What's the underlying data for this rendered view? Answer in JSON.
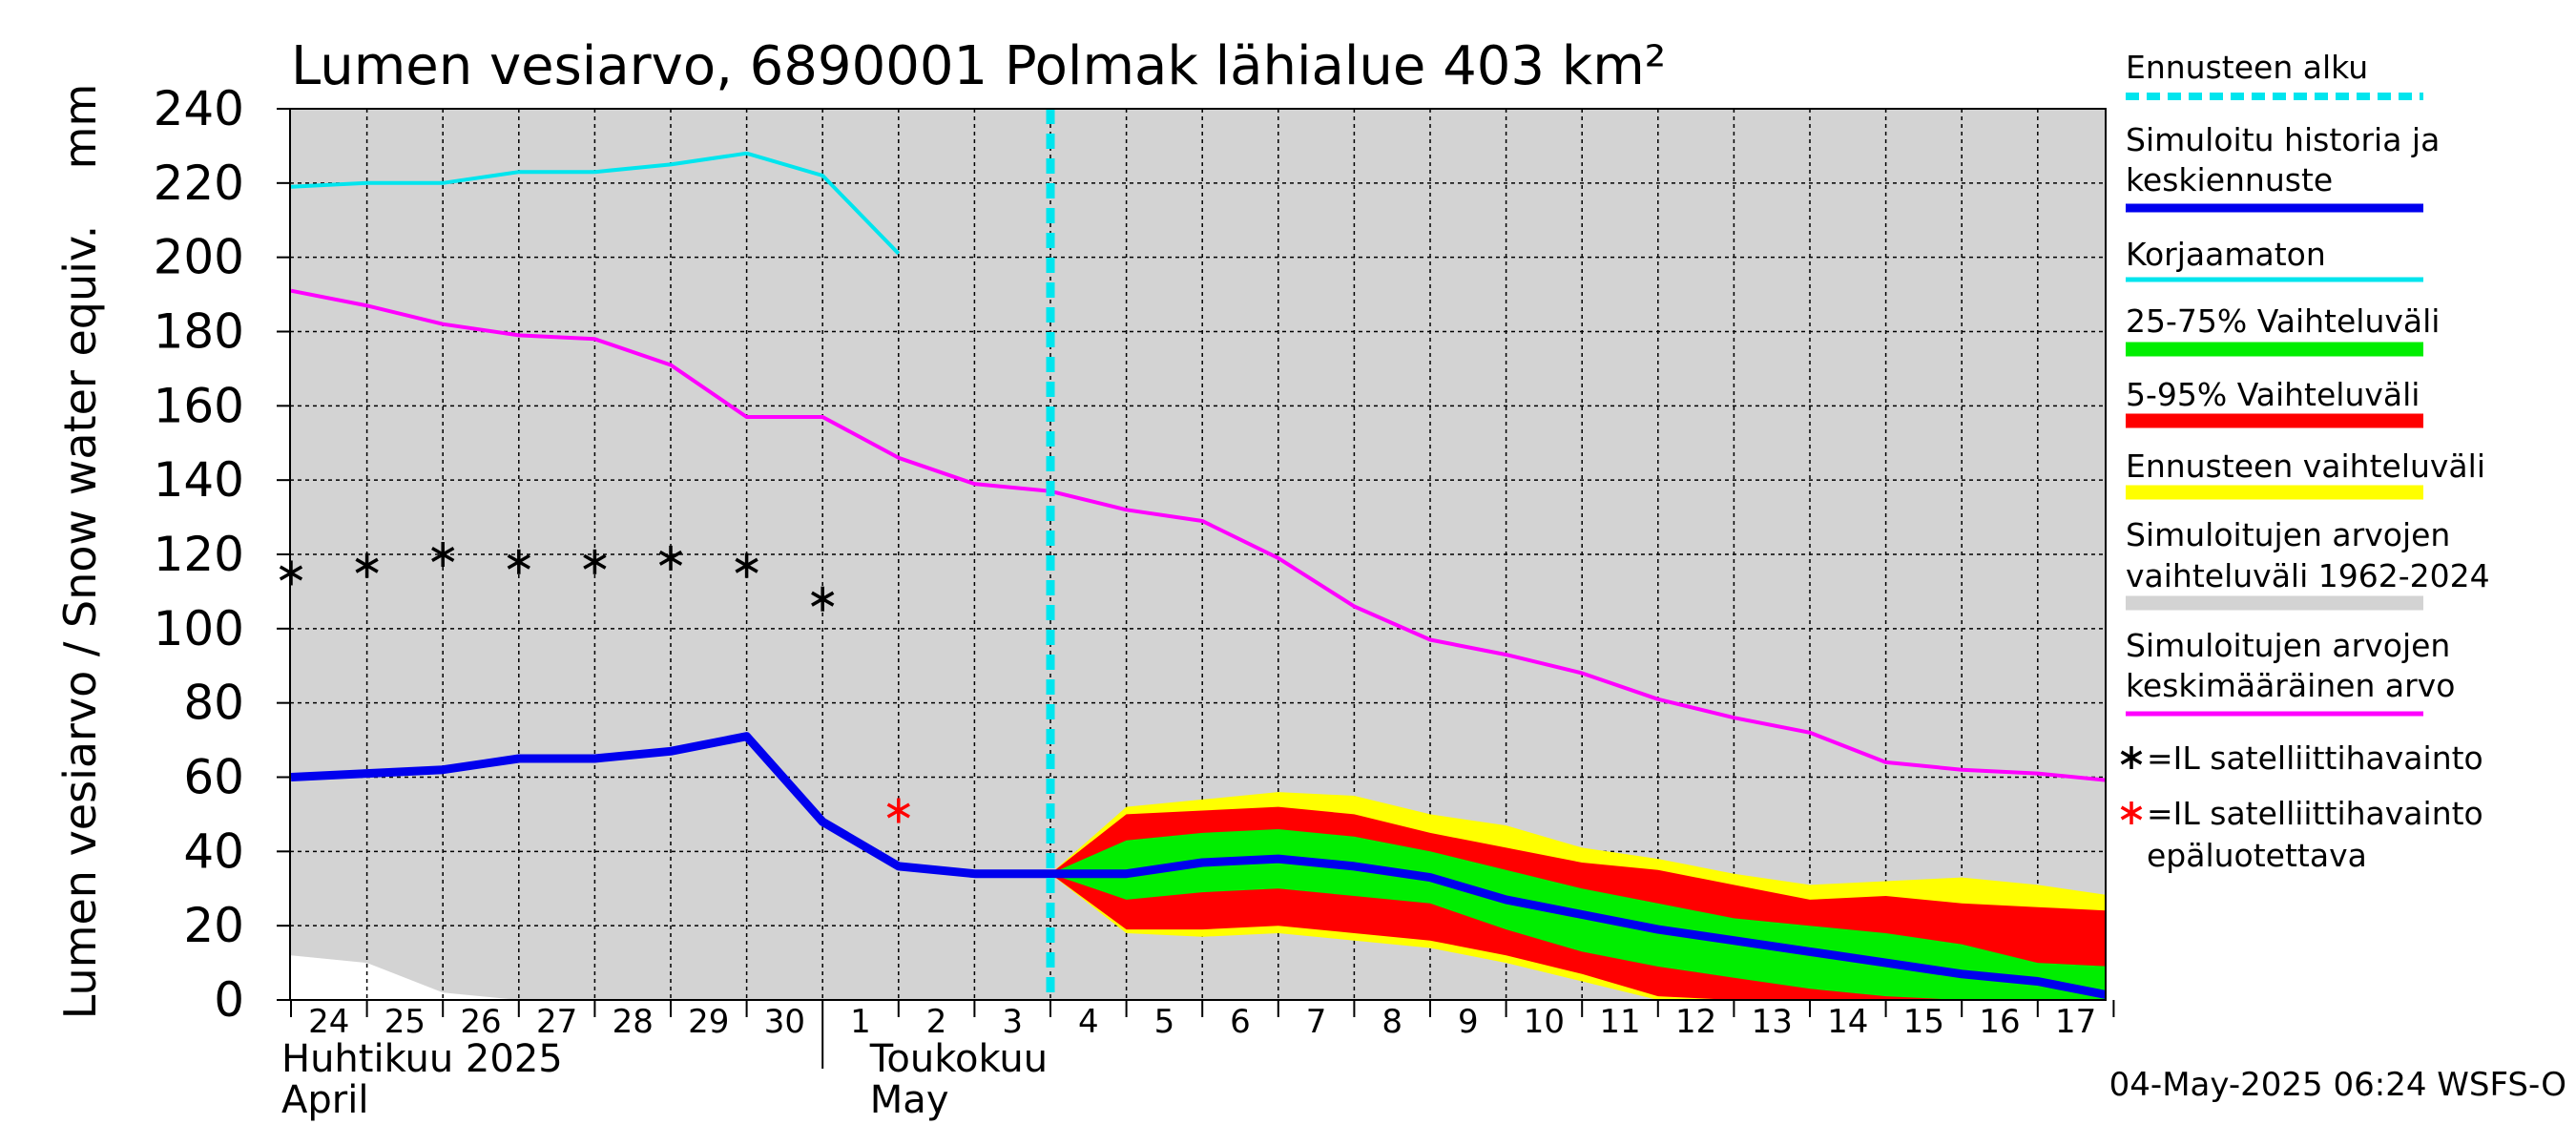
{
  "chart_data": {
    "type": "line",
    "title": "Lumen vesiarvo, 6890001 Polmak lähialue 403 km²",
    "ylabel": "Lumen vesiarvo / Snow water equiv.    mm",
    "ylim": [
      0,
      240
    ],
    "yticks": [
      0,
      20,
      40,
      60,
      80,
      100,
      120,
      140,
      160,
      180,
      200,
      220,
      240
    ],
    "grid": true,
    "x_day_labels": [
      "24",
      "25",
      "26",
      "27",
      "28",
      "29",
      "30",
      "1",
      "2",
      "3",
      "4",
      "5",
      "6",
      "7",
      "8",
      "9",
      "10",
      "11",
      "12",
      "13",
      "14",
      "15",
      "16",
      "17"
    ],
    "x_dates": [
      "2025-04-24",
      "2025-04-25",
      "2025-04-26",
      "2025-04-27",
      "2025-04-28",
      "2025-04-29",
      "2025-04-30",
      "2025-05-01",
      "2025-05-02",
      "2025-05-03",
      "2025-05-04",
      "2025-05-05",
      "2025-05-06",
      "2025-05-07",
      "2025-05-08",
      "2025-05-09",
      "2025-05-10",
      "2025-05-11",
      "2025-05-12",
      "2025-05-13",
      "2025-05-14",
      "2025-05-15",
      "2025-05-16",
      "2025-05-17",
      "2025-05-18"
    ],
    "month_labels": [
      {
        "fi": "Huhtikuu  2025",
        "en": "April"
      },
      {
        "fi": "Toukokuu",
        "en": "May"
      }
    ],
    "forecast_start": "2025-05-04",
    "historical_range_1962_2024": {
      "upper": [
        240,
        240,
        240,
        240,
        240,
        240,
        240,
        240,
        240,
        240,
        240,
        240,
        240,
        240,
        240,
        240,
        240,
        240,
        240,
        240,
        240,
        240,
        240,
        240,
        240
      ],
      "lower": [
        12,
        10,
        2,
        0,
        0,
        0,
        0,
        0,
        0,
        0,
        0,
        0,
        0,
        0,
        0,
        0,
        0,
        0,
        0,
        0,
        0,
        0,
        0,
        0,
        0
      ]
    },
    "forecast_range": {
      "x": [
        "2025-05-04",
        "2025-05-05",
        "2025-05-06",
        "2025-05-07",
        "2025-05-08",
        "2025-05-09",
        "2025-05-10",
        "2025-05-11",
        "2025-05-12",
        "2025-05-13",
        "2025-05-14",
        "2025-05-15",
        "2025-05-16",
        "2025-05-17",
        "2025-05-18"
      ],
      "upper": [
        34,
        52,
        54,
        56,
        55,
        50,
        47,
        41,
        38,
        34,
        31,
        32,
        33,
        31,
        28
      ],
      "lower": [
        34,
        18,
        17,
        18,
        16,
        14,
        10,
        5,
        0,
        0,
        0,
        0,
        0,
        0,
        0
      ]
    },
    "range_5_95": {
      "x": [
        "2025-05-04",
        "2025-05-05",
        "2025-05-06",
        "2025-05-07",
        "2025-05-08",
        "2025-05-09",
        "2025-05-10",
        "2025-05-11",
        "2025-05-12",
        "2025-05-13",
        "2025-05-14",
        "2025-05-15",
        "2025-05-16",
        "2025-05-17",
        "2025-05-18"
      ],
      "upper": [
        34,
        50,
        51,
        52,
        50,
        45,
        41,
        37,
        35,
        31,
        27,
        28,
        26,
        25,
        24
      ],
      "lower": [
        34,
        19,
        19,
        20,
        18,
        16,
        12,
        7,
        1,
        0,
        0,
        0,
        0,
        0,
        0
      ]
    },
    "range_25_75": {
      "x": [
        "2025-05-04",
        "2025-05-05",
        "2025-05-06",
        "2025-05-07",
        "2025-05-08",
        "2025-05-09",
        "2025-05-10",
        "2025-05-11",
        "2025-05-12",
        "2025-05-13",
        "2025-05-14",
        "2025-05-15",
        "2025-05-16",
        "2025-05-17",
        "2025-05-18"
      ],
      "upper": [
        34,
        43,
        45,
        46,
        44,
        40,
        35,
        30,
        26,
        22,
        20,
        18,
        15,
        10,
        9
      ],
      "lower": [
        34,
        27,
        29,
        30,
        28,
        26,
        19,
        13,
        9,
        6,
        3,
        1,
        0,
        0,
        0
      ]
    },
    "series": [
      {
        "name": "Simuloitujen arvojen keskimääräinen arvo",
        "color": "#ff00ff",
        "x": [
          "2025-04-24",
          "2025-04-25",
          "2025-04-26",
          "2025-04-27",
          "2025-04-28",
          "2025-04-29",
          "2025-04-30",
          "2025-05-01",
          "2025-05-02",
          "2025-05-03",
          "2025-05-04",
          "2025-05-05",
          "2025-05-06",
          "2025-05-07",
          "2025-05-08",
          "2025-05-09",
          "2025-05-10",
          "2025-05-11",
          "2025-05-12",
          "2025-05-13",
          "2025-05-14",
          "2025-05-15",
          "2025-05-16",
          "2025-05-17",
          "2025-05-18"
        ],
        "y": [
          191,
          187,
          182,
          179,
          178,
          171,
          157,
          157,
          146,
          139,
          137,
          132,
          129,
          119,
          106,
          97,
          93,
          88,
          81,
          76,
          72,
          64,
          62,
          61,
          59
        ]
      },
      {
        "name": "Korjaamaton",
        "color": "#00e5ee",
        "x": [
          "2025-04-24",
          "2025-04-25",
          "2025-04-26",
          "2025-04-27",
          "2025-04-28",
          "2025-04-29",
          "2025-04-30",
          "2025-05-01",
          "2025-05-02"
        ],
        "y": [
          219,
          220,
          220,
          223,
          223,
          225,
          228,
          222,
          201
        ]
      },
      {
        "name": "Simuloitu historia ja keskiennuste",
        "color": "#0000ee",
        "x": [
          "2025-04-24",
          "2025-04-25",
          "2025-04-26",
          "2025-04-27",
          "2025-04-28",
          "2025-04-29",
          "2025-04-30",
          "2025-05-01",
          "2025-05-02",
          "2025-05-03",
          "2025-05-04",
          "2025-05-05",
          "2025-05-06",
          "2025-05-07",
          "2025-05-08",
          "2025-05-09",
          "2025-05-10",
          "2025-05-11",
          "2025-05-12",
          "2025-05-13",
          "2025-05-14",
          "2025-05-15",
          "2025-05-16",
          "2025-05-17",
          "2025-05-18"
        ],
        "y": [
          60,
          61,
          62,
          65,
          65,
          67,
          71,
          48,
          36,
          34,
          34,
          34,
          37,
          38,
          36,
          33,
          27,
          23,
          19,
          16,
          13,
          10,
          7,
          5,
          1
        ]
      }
    ],
    "satellite_obs": {
      "x": [
        "2025-04-24",
        "2025-04-25",
        "2025-04-26",
        "2025-04-27",
        "2025-04-28",
        "2025-04-29",
        "2025-04-30",
        "2025-05-01"
      ],
      "y": [
        115,
        117,
        120,
        118,
        118,
        119,
        117,
        108
      ]
    },
    "satellite_obs_unreliable": {
      "x": [
        "2025-05-02"
      ],
      "y": [
        51
      ]
    },
    "legend": [
      {
        "label": "Ennusteen alku",
        "style": "dash",
        "color": "#00e5ee"
      },
      {
        "label": "Simuloitu historia ja\nkeskiennuste",
        "style": "line",
        "color": "#0000ee"
      },
      {
        "label": "Korjaamaton",
        "style": "line",
        "color": "#00e5ee"
      },
      {
        "label": "25-75% Vaihteluväli",
        "style": "band",
        "color": "#00ee00"
      },
      {
        "label": "5-95% Vaihteluväli",
        "style": "band",
        "color": "#ff0000"
      },
      {
        "label": "Ennusteen vaihteluväli",
        "style": "band",
        "color": "#ffff00"
      },
      {
        "label": "Simuloitujen arvojen\nvaihteluväli 1962-2024",
        "style": "band",
        "color": "#d3d3d3"
      },
      {
        "label": "Simuloitujen arvojen\nkeskimääräinen arvo",
        "style": "line",
        "color": "#ff00ff"
      },
      {
        "label": "=IL satelliittihavainto",
        "style": "marker",
        "color": "#000000"
      },
      {
        "label": "=IL satelliittihavainto\nepäluotettava",
        "style": "marker",
        "color": "#ff0000"
      }
    ],
    "legend_position": "right"
  },
  "footer": {
    "timestamp": "04-May-2025 06:24 WSFS-O"
  }
}
